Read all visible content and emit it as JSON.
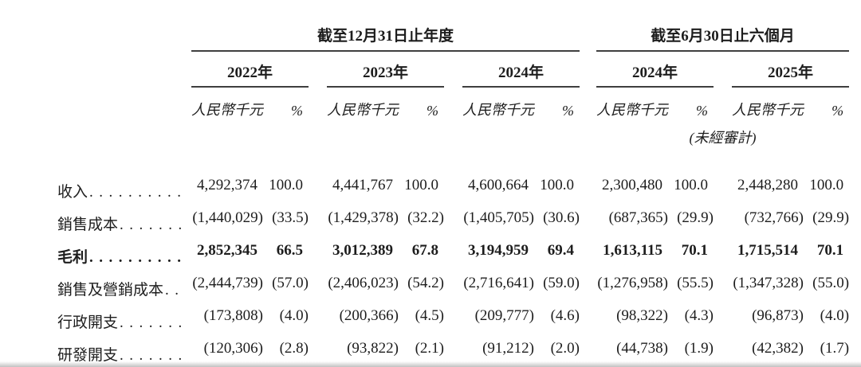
{
  "colors": {
    "text": "#1d1d1d",
    "rule": "#3f3f3f"
  },
  "table": {
    "section_headers": [
      {
        "label": "截至12月31日止年度"
      },
      {
        "label": "截至6月30日止六個月"
      }
    ],
    "year_headers": [
      "2022年",
      "2023年",
      "2024年",
      "2024年",
      "2025年"
    ],
    "unit_header": "人民幣千元",
    "pct_header": "%",
    "unaudited_note": "(未經審計)",
    "rows": [
      {
        "label": "收入",
        "bold": false,
        "values": [
          [
            "4,292,374",
            "100.0"
          ],
          [
            "4,441,767",
            "100.0"
          ],
          [
            "4,600,664",
            "100.0"
          ],
          [
            "2,300,480",
            "100.0"
          ],
          [
            "2,448,280",
            "100.0"
          ]
        ]
      },
      {
        "label": "銷售成本",
        "bold": false,
        "values": [
          [
            "(1,440,029)",
            "(33.5)"
          ],
          [
            "(1,429,378)",
            "(32.2)"
          ],
          [
            "(1,405,705)",
            "(30.6)"
          ],
          [
            "(687,365)",
            "(29.9)"
          ],
          [
            "(732,766)",
            "(29.9)"
          ]
        ]
      },
      {
        "label": "毛利",
        "bold": true,
        "values": [
          [
            "2,852,345",
            "66.5"
          ],
          [
            "3,012,389",
            "67.8"
          ],
          [
            "3,194,959",
            "69.4"
          ],
          [
            "1,613,115",
            "70.1"
          ],
          [
            "1,715,514",
            "70.1"
          ]
        ]
      },
      {
        "label": "銷售及營銷成本",
        "bold": false,
        "values": [
          [
            "(2,444,739)",
            "(57.0)"
          ],
          [
            "(2,406,023)",
            "(54.2)"
          ],
          [
            "(2,716,641)",
            "(59.0)"
          ],
          [
            "(1,276,958)",
            "(55.5)"
          ],
          [
            "(1,347,328)",
            "(55.0)"
          ]
        ]
      },
      {
        "label": "行政開支",
        "bold": false,
        "values": [
          [
            "(173,808)",
            "(4.0)"
          ],
          [
            "(200,366)",
            "(4.5)"
          ],
          [
            "(209,777)",
            "(4.6)"
          ],
          [
            "(98,322)",
            "(4.3)"
          ],
          [
            "(96,873)",
            "(4.0)"
          ]
        ]
      },
      {
        "label": "研發開支",
        "bold": false,
        "values": [
          [
            "(120,306)",
            "(2.8)"
          ],
          [
            "(93,822)",
            "(2.1)"
          ],
          [
            "(91,212)",
            "(2.0)"
          ],
          [
            "(44,738)",
            "(1.9)"
          ],
          [
            "(42,382)",
            "(1.7)"
          ]
        ]
      }
    ]
  }
}
